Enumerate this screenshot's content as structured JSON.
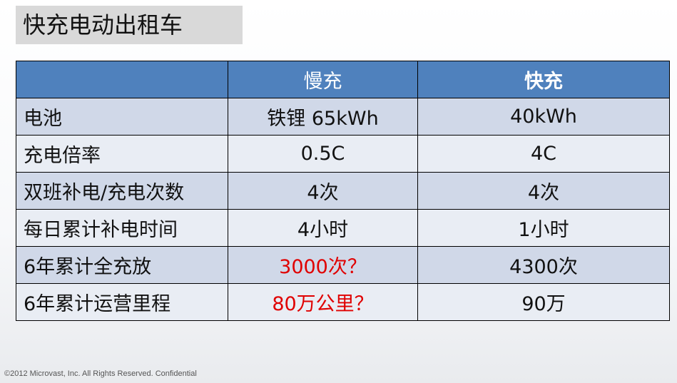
{
  "header": {
    "title": "快充电动出租车"
  },
  "table": {
    "columns": [
      "慢充",
      "快充"
    ],
    "rows": [
      [
        "电池",
        "铁锂 65kWh",
        "40kWh"
      ],
      [
        "充电倍率",
        "0.5C",
        "4C"
      ],
      [
        "双班补电/充电次数",
        "4次",
        "4次"
      ],
      [
        "每日累计补电时间",
        "4小时",
        "1小时"
      ],
      [
        "6年累计全充放",
        "3000次？",
        "4300次"
      ],
      [
        "6年累计运营里程",
        "80万公里？",
        "90万"
      ]
    ]
  },
  "footer": {
    "text": "©2012 Microvast, Inc. All Rights Reserved.  Confidential"
  }
}
